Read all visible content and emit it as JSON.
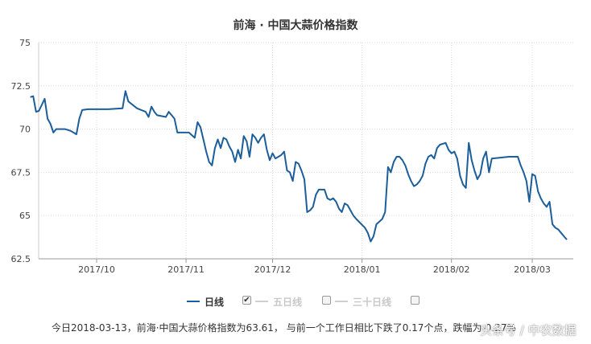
{
  "chart_data": {
    "type": "line",
    "title": "前海 · 中国大蒜价格指数",
    "ylim": [
      62.5,
      75
    ],
    "y_ticks": [
      "62.5",
      "65",
      "67.5",
      "70",
      "72.5",
      "75"
    ],
    "x_ticks": [
      "2017/10",
      "2017/11",
      "2017/12",
      "2018/01",
      "2018/02",
      "2018/03"
    ],
    "grid": true,
    "series": [
      {
        "name": "日线",
        "color": "#1b5e9a",
        "points": [
          [
            "2017-09-08",
            71.85
          ],
          [
            "2017-09-09",
            71.9
          ],
          [
            "2017-09-10",
            71.0
          ],
          [
            "2017-09-11",
            71.05
          ],
          [
            "2017-09-12",
            71.4
          ],
          [
            "2017-09-13",
            71.75
          ],
          [
            "2017-09-14",
            70.6
          ],
          [
            "2017-09-15",
            70.3
          ],
          [
            "2017-09-16",
            69.8
          ],
          [
            "2017-09-17",
            70.0
          ],
          [
            "2017-09-20",
            70.0
          ],
          [
            "2017-09-22",
            69.9
          ],
          [
            "2017-09-24",
            69.7
          ],
          [
            "2017-09-25",
            70.6
          ],
          [
            "2017-09-26",
            71.1
          ],
          [
            "2017-09-28",
            71.15
          ],
          [
            "2017-10-05",
            71.15
          ],
          [
            "2017-10-10",
            71.2
          ],
          [
            "2017-10-11",
            72.2
          ],
          [
            "2017-10-12",
            71.6
          ],
          [
            "2017-10-15",
            71.2
          ],
          [
            "2017-10-18",
            71.0
          ],
          [
            "2017-10-19",
            70.7
          ],
          [
            "2017-10-20",
            71.3
          ],
          [
            "2017-10-21",
            71.0
          ],
          [
            "2017-10-22",
            70.8
          ],
          [
            "2017-10-25",
            70.7
          ],
          [
            "2017-10-26",
            71.0
          ],
          [
            "2017-10-27",
            70.8
          ],
          [
            "2017-10-28",
            70.6
          ],
          [
            "2017-10-29",
            69.8
          ],
          [
            "2017-11-02",
            69.8
          ],
          [
            "2017-11-04",
            69.5
          ],
          [
            "2017-11-05",
            70.4
          ],
          [
            "2017-11-06",
            70.1
          ],
          [
            "2017-11-07",
            69.4
          ],
          [
            "2017-11-08",
            68.7
          ],
          [
            "2017-11-09",
            68.1
          ],
          [
            "2017-11-10",
            67.9
          ],
          [
            "2017-11-11",
            68.9
          ],
          [
            "2017-11-12",
            69.4
          ],
          [
            "2017-11-13",
            68.9
          ],
          [
            "2017-11-14",
            69.5
          ],
          [
            "2017-11-15",
            69.4
          ],
          [
            "2017-11-16",
            69.0
          ],
          [
            "2017-11-17",
            68.7
          ],
          [
            "2017-11-18",
            68.1
          ],
          [
            "2017-11-19",
            68.8
          ],
          [
            "2017-11-20",
            68.3
          ],
          [
            "2017-11-21",
            69.6
          ],
          [
            "2017-11-22",
            69.3
          ],
          [
            "2017-11-23",
            68.4
          ],
          [
            "2017-11-24",
            69.7
          ],
          [
            "2017-11-25",
            69.5
          ],
          [
            "2017-11-26",
            69.2
          ],
          [
            "2017-11-27",
            69.5
          ],
          [
            "2017-11-28",
            69.7
          ],
          [
            "2017-11-29",
            68.8
          ],
          [
            "2017-11-30",
            68.2
          ],
          [
            "2017-12-01",
            68.6
          ],
          [
            "2017-12-02",
            68.3
          ],
          [
            "2017-12-04",
            68.5
          ],
          [
            "2017-12-05",
            68.7
          ],
          [
            "2017-12-06",
            67.6
          ],
          [
            "2017-12-07",
            67.5
          ],
          [
            "2017-12-08",
            67.0
          ],
          [
            "2017-12-09",
            68.1
          ],
          [
            "2017-12-10",
            68.0
          ],
          [
            "2017-12-11",
            67.6
          ],
          [
            "2017-12-12",
            67.1
          ],
          [
            "2017-12-13",
            65.2
          ],
          [
            "2017-12-14",
            65.3
          ],
          [
            "2017-12-15",
            65.5
          ],
          [
            "2017-12-16",
            66.2
          ],
          [
            "2017-12-17",
            66.5
          ],
          [
            "2017-12-19",
            66.5
          ],
          [
            "2017-12-20",
            66.0
          ],
          [
            "2017-12-21",
            65.9
          ],
          [
            "2017-12-22",
            66.0
          ],
          [
            "2017-12-23",
            65.8
          ],
          [
            "2017-12-24",
            65.4
          ],
          [
            "2017-12-25",
            65.2
          ],
          [
            "2017-12-26",
            65.7
          ],
          [
            "2017-12-27",
            65.6
          ],
          [
            "2017-12-28",
            65.3
          ],
          [
            "2017-12-29",
            65.0
          ],
          [
            "2017-12-30",
            64.8
          ],
          [
            "2018-01-02",
            64.3
          ],
          [
            "2018-01-03",
            64.0
          ],
          [
            "2018-01-04",
            63.5
          ],
          [
            "2018-01-05",
            63.8
          ],
          [
            "2018-01-06",
            64.5
          ],
          [
            "2018-01-08",
            64.8
          ],
          [
            "2018-01-09",
            65.2
          ],
          [
            "2018-01-10",
            67.8
          ],
          [
            "2018-01-11",
            67.5
          ],
          [
            "2018-01-12",
            68.1
          ],
          [
            "2018-01-13",
            68.4
          ],
          [
            "2018-01-14",
            68.4
          ],
          [
            "2018-01-15",
            68.2
          ],
          [
            "2018-01-16",
            67.9
          ],
          [
            "2018-01-17",
            67.4
          ],
          [
            "2018-01-18",
            67.0
          ],
          [
            "2018-01-19",
            66.7
          ],
          [
            "2018-01-20",
            66.8
          ],
          [
            "2018-01-21",
            67.0
          ],
          [
            "2018-01-22",
            67.3
          ],
          [
            "2018-01-23",
            68.0
          ],
          [
            "2018-01-24",
            68.4
          ],
          [
            "2018-01-25",
            68.5
          ],
          [
            "2018-01-26",
            68.3
          ],
          [
            "2018-01-27",
            68.9
          ],
          [
            "2018-01-28",
            69.1
          ],
          [
            "2018-01-30",
            69.2
          ],
          [
            "2018-01-31",
            68.8
          ],
          [
            "2018-02-01",
            68.6
          ],
          [
            "2018-02-02",
            68.7
          ],
          [
            "2018-02-03",
            68.3
          ],
          [
            "2018-02-04",
            67.3
          ],
          [
            "2018-02-05",
            66.8
          ],
          [
            "2018-02-06",
            66.6
          ],
          [
            "2018-02-07",
            69.2
          ],
          [
            "2018-02-08",
            68.2
          ],
          [
            "2018-02-09",
            67.6
          ],
          [
            "2018-02-10",
            67.1
          ],
          [
            "2018-02-11",
            67.4
          ],
          [
            "2018-02-12",
            68.3
          ],
          [
            "2018-02-13",
            68.7
          ],
          [
            "2018-02-14",
            67.5
          ],
          [
            "2018-02-15",
            68.3
          ],
          [
            "2018-02-18",
            68.35
          ],
          [
            "2018-02-21",
            68.4
          ],
          [
            "2018-02-24",
            68.4
          ],
          [
            "2018-02-25",
            67.9
          ],
          [
            "2018-02-26",
            67.5
          ],
          [
            "2018-02-27",
            67.0
          ],
          [
            "2018-02-28",
            65.8
          ],
          [
            "2018-03-01",
            67.4
          ],
          [
            "2018-03-02",
            67.3
          ],
          [
            "2018-03-03",
            66.4
          ],
          [
            "2018-03-04",
            66.0
          ],
          [
            "2018-03-05",
            65.7
          ],
          [
            "2018-03-06",
            65.5
          ],
          [
            "2018-03-07",
            65.8
          ],
          [
            "2018-03-08",
            64.5
          ],
          [
            "2018-03-09",
            64.3
          ],
          [
            "2018-03-10",
            64.2
          ],
          [
            "2018-03-11",
            64.0
          ],
          [
            "2018-03-12",
            63.8
          ],
          [
            "2018-03-13",
            63.61
          ]
        ]
      }
    ]
  },
  "legend": {
    "items": [
      {
        "label": "日线",
        "active": true,
        "checked": true
      },
      {
        "label": "五日线",
        "active": false,
        "checked": false
      },
      {
        "label": "三十日线",
        "active": false,
        "checked": false
      }
    ],
    "check_mark": "✔"
  },
  "summary": "今日2018-03-13，前海·中国大蒜价格指数为63.61， 与前一个工作日相比下跌了0.17个点，跌幅为-0.27%",
  "watermark": "头条号 / 中农数据"
}
